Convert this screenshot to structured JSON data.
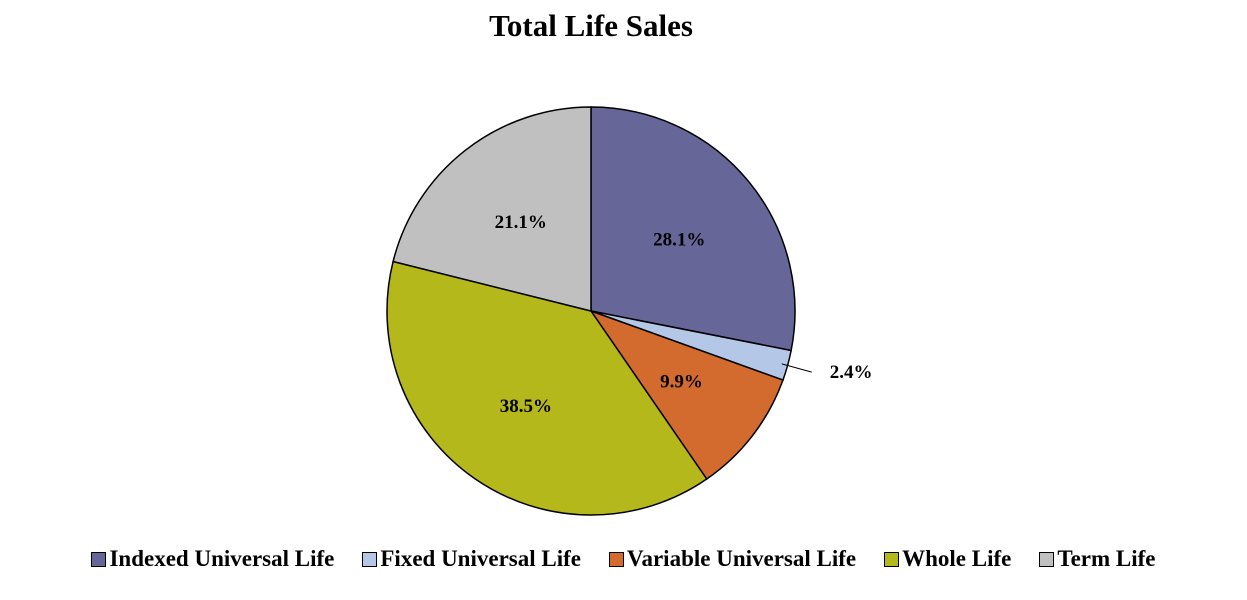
{
  "chart_data": {
    "type": "pie",
    "title": "Total Life Sales",
    "slices": [
      {
        "label": "Indexed Universal Life",
        "value": 28.1,
        "display": "28.1%",
        "color": "#666699"
      },
      {
        "label": "Fixed Universal Life",
        "value": 2.4,
        "display": "2.4%",
        "color": "#b4c7e7"
      },
      {
        "label": "Variable Universal Life",
        "value": 9.9,
        "display": "9.9%",
        "color": "#d46b2e"
      },
      {
        "label": "Whole Life",
        "value": 38.5,
        "display": "38.5%",
        "color": "#b5b81b"
      },
      {
        "label": "Term Life",
        "value": 21.1,
        "display": "21.1%",
        "color": "#c0c0c0"
      }
    ],
    "legend_position": "bottom"
  }
}
